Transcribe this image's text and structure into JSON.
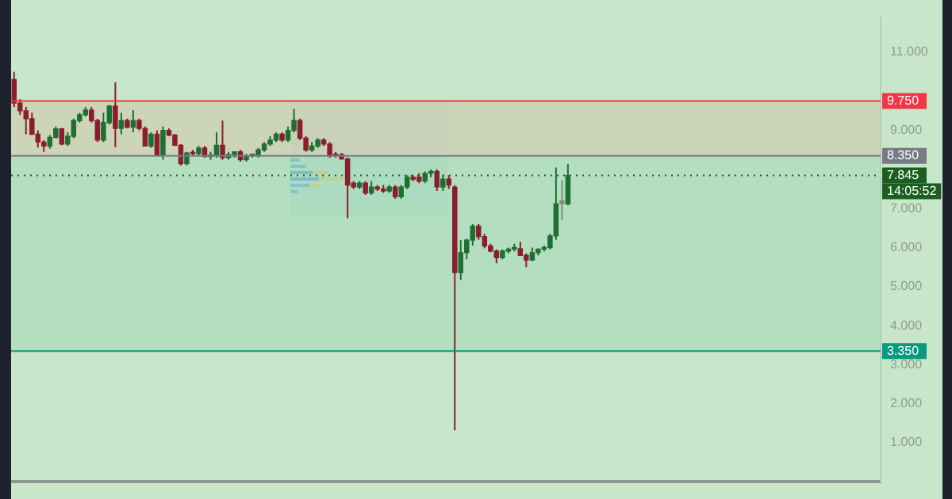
{
  "chart_data": {
    "type": "candlestick",
    "categories": [
      null,
      null,
      null,
      null,
      null,
      null,
      null,
      null,
      null,
      null,
      null,
      null,
      null,
      null,
      null,
      null,
      null,
      null,
      null,
      null,
      null,
      null,
      null,
      null,
      null,
      null,
      null,
      null,
      null,
      null,
      null,
      null,
      null,
      null,
      null,
      null,
      null,
      null,
      null,
      null,
      null,
      null,
      null,
      null,
      null,
      null,
      null,
      null,
      null,
      null,
      null,
      null,
      null,
      null,
      null,
      null,
      null,
      null,
      null,
      null,
      null,
      null,
      null,
      null,
      null,
      null,
      null,
      null,
      null,
      null,
      null,
      null,
      null,
      null,
      null,
      null,
      null,
      null,
      null,
      null,
      null,
      null,
      null,
      null,
      null,
      null,
      null,
      null,
      null,
      null,
      null,
      null,
      null,
      null,
      null,
      null,
      null,
      null,
      null,
      null,
      null,
      null,
      null,
      null,
      null,
      null,
      null,
      null,
      null,
      null,
      null,
      null,
      null,
      null,
      null,
      null,
      null,
      null,
      null,
      null,
      null,
      null,
      null,
      null,
      null,
      null,
      null,
      null,
      null,
      null,
      null,
      null,
      null,
      null,
      null,
      null,
      null,
      null,
      null,
      null,
      null,
      null,
      null,
      null,
      null,
      null
    ],
    "ohlc": [
      [
        10.3,
        10.5,
        9.6,
        9.7
      ],
      [
        9.7,
        9.8,
        9.4,
        9.5
      ],
      [
        9.5,
        9.6,
        8.9,
        9.3
      ],
      [
        9.3,
        9.45,
        8.9,
        8.9
      ],
      [
        8.9,
        9.0,
        8.56,
        8.7
      ],
      [
        8.7,
        8.75,
        8.45,
        8.6
      ],
      [
        8.6,
        8.88,
        8.53,
        8.82
      ],
      [
        8.82,
        9.1,
        8.8,
        9.04
      ],
      [
        9.04,
        9.06,
        8.62,
        8.65
      ],
      [
        8.65,
        8.95,
        8.6,
        8.85
      ],
      [
        8.85,
        9.3,
        8.8,
        9.25
      ],
      [
        9.25,
        9.45,
        9.2,
        9.4
      ],
      [
        9.4,
        9.6,
        9.35,
        9.52
      ],
      [
        9.52,
        9.6,
        9.2,
        9.25
      ],
      [
        9.25,
        9.3,
        8.7,
        8.75
      ],
      [
        8.75,
        9.45,
        8.7,
        9.2
      ],
      [
        9.2,
        9.65,
        9.15,
        9.62
      ],
      [
        9.62,
        10.23,
        8.57,
        9.05
      ],
      [
        9.05,
        9.45,
        8.9,
        9.25
      ],
      [
        9.25,
        9.3,
        9.05,
        9.08
      ],
      [
        9.08,
        9.52,
        8.95,
        9.25
      ],
      [
        9.25,
        9.3,
        9.0,
        9.05
      ],
      [
        9.05,
        9.1,
        8.6,
        8.6
      ],
      [
        8.6,
        8.95,
        8.55,
        8.9
      ],
      [
        8.9,
        9.0,
        8.35,
        8.37
      ],
      [
        8.37,
        9.1,
        8.25,
        9.0
      ],
      [
        9.0,
        9.05,
        8.85,
        8.88
      ],
      [
        8.88,
        8.9,
        8.6,
        8.62
      ],
      [
        8.62,
        8.65,
        8.1,
        8.15
      ],
      [
        8.15,
        8.45,
        8.1,
        8.42
      ],
      [
        8.42,
        8.5,
        8.35,
        8.4
      ],
      [
        8.4,
        8.6,
        8.35,
        8.55
      ],
      [
        8.55,
        8.6,
        8.3,
        8.33
      ],
      [
        8.33,
        8.45,
        8.25,
        8.35
      ],
      [
        8.35,
        8.95,
        8.3,
        8.62
      ],
      [
        8.62,
        9.25,
        8.25,
        8.3
      ],
      [
        8.3,
        8.45,
        8.25,
        8.38
      ],
      [
        8.38,
        8.45,
        8.3,
        8.45
      ],
      [
        8.45,
        8.5,
        8.2,
        8.25
      ],
      [
        8.25,
        8.4,
        8.2,
        8.35
      ],
      [
        8.35,
        8.38,
        8.3,
        8.35
      ],
      [
        8.35,
        8.55,
        8.3,
        8.5
      ],
      [
        8.5,
        8.7,
        8.45,
        8.65
      ],
      [
        8.65,
        8.85,
        8.6,
        8.75
      ],
      [
        8.75,
        8.95,
        8.7,
        8.9
      ],
      [
        8.9,
        8.95,
        8.7,
        8.75
      ],
      [
        8.75,
        9.1,
        8.7,
        9.0
      ],
      [
        9.0,
        9.55,
        8.95,
        9.25
      ],
      [
        9.25,
        9.3,
        8.75,
        8.8
      ],
      [
        8.8,
        8.85,
        8.45,
        8.5
      ],
      [
        8.5,
        8.7,
        8.45,
        8.6
      ],
      [
        8.6,
        8.8,
        8.55,
        8.75
      ],
      [
        8.75,
        8.8,
        8.6,
        8.65
      ],
      [
        8.65,
        8.7,
        8.3,
        8.35
      ],
      [
        8.35,
        8.45,
        8.3,
        8.38
      ],
      [
        8.38,
        8.42,
        8.25,
        8.27
      ],
      [
        8.27,
        8.3,
        6.75,
        7.6
      ],
      [
        7.65,
        7.7,
        7.5,
        7.55
      ],
      [
        7.55,
        7.7,
        7.5,
        7.65
      ],
      [
        7.65,
        7.7,
        7.35,
        7.4
      ],
      [
        7.4,
        7.7,
        7.35,
        7.55
      ],
      [
        7.55,
        7.6,
        7.45,
        7.5
      ],
      [
        7.5,
        7.6,
        7.4,
        7.45
      ],
      [
        7.45,
        7.6,
        7.4,
        7.55
      ],
      [
        7.55,
        7.6,
        7.25,
        7.3
      ],
      [
        7.3,
        7.6,
        7.25,
        7.55
      ],
      [
        7.55,
        7.85,
        7.5,
        7.8
      ],
      [
        7.8,
        7.85,
        7.7,
        7.75
      ],
      [
        7.8,
        7.9,
        7.65,
        7.7
      ],
      [
        7.7,
        7.95,
        7.65,
        7.9
      ],
      [
        7.9,
        8.0,
        7.8,
        7.95
      ],
      [
        7.95,
        8.0,
        7.45,
        7.55
      ],
      [
        7.55,
        7.85,
        7.45,
        7.75
      ],
      [
        7.75,
        7.85,
        7.5,
        7.6
      ],
      [
        7.55,
        7.6,
        1.32,
        5.36
      ],
      [
        5.36,
        6.19,
        5.17,
        5.87
      ],
      [
        5.87,
        6.22,
        5.7,
        6.19
      ],
      [
        6.19,
        6.6,
        6.05,
        6.55
      ],
      [
        6.55,
        6.6,
        6.2,
        6.28
      ],
      [
        6.28,
        6.35,
        5.98,
        6.04
      ],
      [
        6.04,
        6.1,
        5.88,
        5.91
      ],
      [
        5.91,
        5.95,
        5.6,
        5.74
      ],
      [
        5.74,
        5.95,
        5.7,
        5.91
      ],
      [
        5.91,
        6.0,
        5.85,
        5.96
      ],
      [
        5.96,
        6.1,
        5.9,
        5.97
      ],
      [
        5.97,
        6.15,
        5.8,
        5.8
      ],
      [
        5.8,
        5.85,
        5.5,
        5.68
      ],
      [
        5.68,
        6.0,
        5.65,
        5.87
      ],
      [
        5.87,
        5.98,
        5.8,
        5.96
      ],
      [
        5.96,
        6.05,
        5.9,
        6.0
      ],
      [
        6.0,
        6.35,
        5.95,
        6.3
      ],
      [
        6.3,
        8.05,
        6.2,
        7.12
      ],
      [
        7.12,
        7.73,
        6.7,
        7.2
      ],
      [
        7.12,
        8.14,
        7.08,
        7.845
      ],
      null,
      null,
      null,
      null,
      null,
      null,
      null,
      null,
      null,
      null,
      null,
      null,
      null,
      null,
      null,
      null,
      null,
      null,
      null,
      null,
      null,
      null,
      null,
      null,
      null,
      null,
      null,
      null,
      null,
      null,
      null,
      null,
      null,
      null,
      null,
      null,
      null,
      null,
      null,
      null,
      null,
      null,
      null,
      null,
      null,
      null,
      null,
      null,
      null,
      null,
      null,
      null
    ],
    "colors": [
      "#8c1d2e",
      "#8c1d2e",
      "#8c1d2e",
      "#8c1d2e",
      "#8c1d2e",
      "#8c1d2e",
      "#1f6f30",
      "#1f6f30",
      "#8c1d2e",
      "#1f6f30",
      "#1f6f30",
      "#1f6f30",
      "#1f6f30",
      "#8c1d2e",
      "#8c1d2e",
      "#1f6f30",
      "#1f6f30",
      "#8c1d2e",
      "#1f6f30",
      "#8c1d2e",
      "#1f6f30",
      "#8c1d2e",
      "#8c1d2e",
      "#1f6f30",
      "#8c1d2e",
      "#1f6f30",
      "#8c1d2e",
      "#8c1d2e",
      "#8c1d2e",
      "#1f6f30",
      "#8c1d2e",
      "#1f6f30",
      "#8c1d2e",
      "#1f6f30",
      "#1f6f30",
      "#8c1d2e",
      "#1f6f30",
      "#1f6f30",
      "#8c1d2e",
      "#1f6f30",
      "#1f6f30",
      "#1f6f30",
      "#1f6f30",
      "#1f6f30",
      "#1f6f30",
      "#8c1d2e",
      "#1f6f30",
      "#1f6f30",
      "#8c1d2e",
      "#8c1d2e",
      "#1f6f30",
      "#1f6f30",
      "#8c1d2e",
      "#8c1d2e",
      "#8c1d2e",
      "#8c1d2e",
      "#8c1d2e",
      "#8c1d2e",
      "#1f6f30",
      "#8c1d2e",
      "#1f6f30",
      "#8c1d2e",
      "#8c1d2e",
      "#1f6f30",
      "#8c1d2e",
      "#1f6f30",
      "#1f6f30",
      "#8c1d2e",
      "#8c1d2e",
      "#1f6f30",
      "#1f6f30",
      "#8c1d2e",
      "#1f6f30",
      "#8c1d2e",
      "#8c1d2e",
      "#1f6f30",
      "#1f6f30",
      "#1f6f30",
      "#8c1d2e",
      "#8c1d2e",
      "#8c1d2e",
      "#8c1d2e",
      "#1f6f30",
      "#1f6f30",
      "#1f6f30",
      "#8c1d2e",
      "#8c1d2e",
      "#1f6f30",
      "#1f6f30",
      "#1f6f30",
      "#1f6f30",
      "#1f6f30",
      "#7f8f86",
      "#1f6f30",
      null,
      null,
      null,
      null,
      null,
      null,
      null,
      null,
      null,
      null,
      null,
      null,
      null,
      null,
      null,
      null,
      null,
      null,
      null,
      null,
      null,
      null,
      null,
      null,
      null,
      null,
      null,
      null,
      null,
      null,
      null,
      null,
      null,
      null,
      null,
      null,
      null,
      null,
      null,
      null,
      null,
      null,
      null,
      null,
      null,
      null,
      null,
      null,
      null,
      null,
      null,
      null
    ],
    "ylim": [
      0,
      11.9
    ],
    "yticks": [
      {
        "value": 1,
        "label": "1.000"
      },
      {
        "value": 2,
        "label": "2.000"
      },
      {
        "value": 3,
        "label": "3.000"
      },
      {
        "value": 4,
        "label": "4.000"
      },
      {
        "value": 5,
        "label": "5.000"
      },
      {
        "value": 6,
        "label": "6.000"
      },
      {
        "value": 7,
        "label": "7.000"
      },
      {
        "value": 9,
        "label": "9.000"
      },
      {
        "value": 11,
        "label": "11.000"
      }
    ],
    "tick_labels": "y",
    "bands": [
      {
        "axis": "y",
        "from": 8.35,
        "to": 9.75,
        "color": "#d2c3a8"
      },
      {
        "axis": "y",
        "from": 3.35,
        "to": 8.35,
        "color": "#9dd6b5"
      }
    ],
    "ref_lines": [
      {
        "axis": "y",
        "value": 9.75,
        "label": "9.750",
        "color": "#f23645",
        "line_style": "solid"
      },
      {
        "axis": "y",
        "value": 8.35,
        "label": "8.350",
        "color": "#787b86",
        "line_style": "solid"
      },
      {
        "axis": "y",
        "value": 3.35,
        "label": "3.350",
        "color": "#089981",
        "line_style": "solid"
      },
      {
        "axis": "y",
        "value": 7.845,
        "label": "7.845",
        "color": "#1b5e20",
        "line_style": "dotted"
      }
    ],
    "annotations": [
      "14:05:52"
    ]
  }
}
